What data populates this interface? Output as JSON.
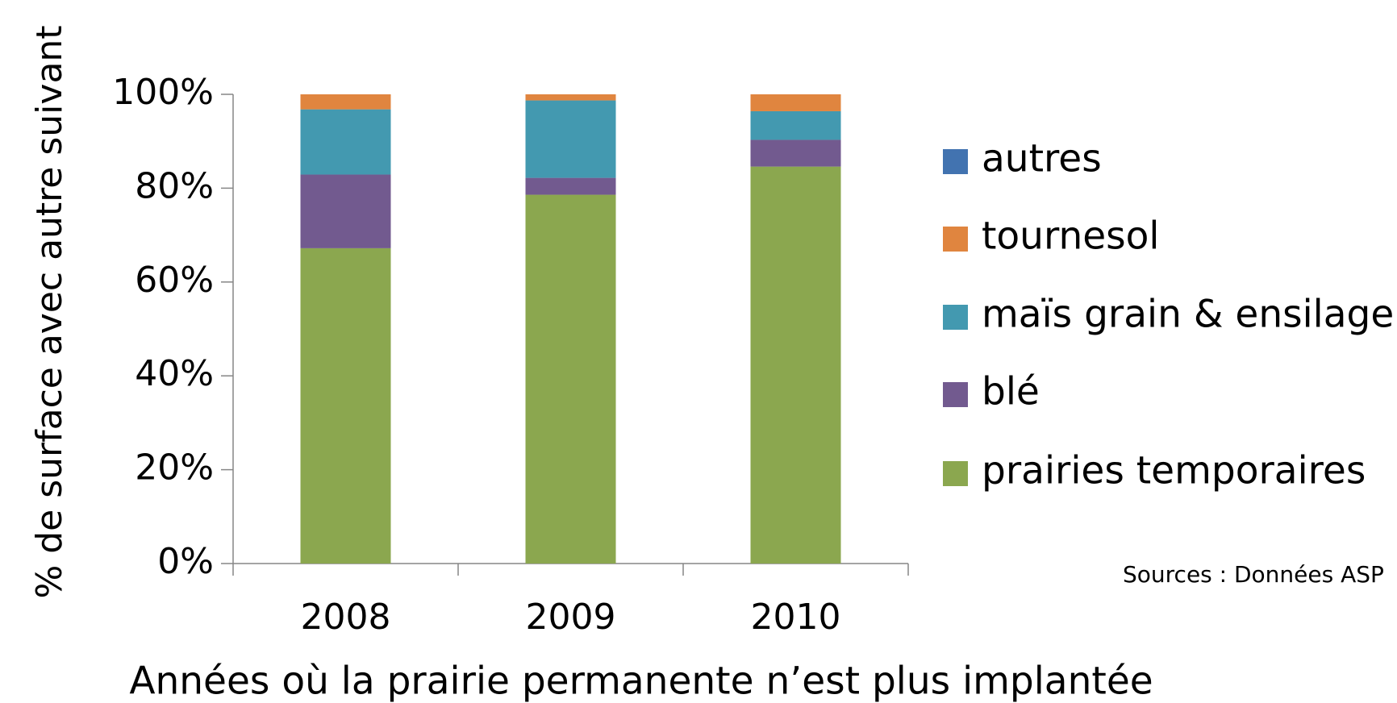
{
  "chart_data": {
    "type": "stacked_bar",
    "y_label": "% de surface avec autre suivant",
    "x_label": "Années où la prairie permanente n’est plus implantée",
    "source": "Sources : Données ASP",
    "categories": [
      "2008",
      "2009",
      "2010"
    ],
    "series": [
      {
        "name": "prairies temporaires",
        "color": "#8ba74f",
        "values": [
          67.2,
          78.6,
          84.6
        ]
      },
      {
        "name": "blé",
        "color": "#725a8f",
        "values": [
          15.7,
          3.6,
          5.7
        ]
      },
      {
        "name": "maïs grain & ensilage",
        "color": "#4399b0",
        "values": [
          13.9,
          16.5,
          6.1
        ]
      },
      {
        "name": "tournesol",
        "color": "#e0853f",
        "values": [
          3.2,
          1.3,
          3.6
        ]
      },
      {
        "name": "autres",
        "color": "#4273b0",
        "values": [
          0,
          0,
          0
        ]
      }
    ],
    "ylim": [
      0,
      100
    ],
    "yticks": [
      {
        "value": 0,
        "label": "0%"
      },
      {
        "value": 20,
        "label": "20%"
      },
      {
        "value": 40,
        "label": "40%"
      },
      {
        "value": 60,
        "label": "60%"
      },
      {
        "value": 80,
        "label": "80%"
      },
      {
        "value": 100,
        "label": "100%"
      }
    ]
  }
}
